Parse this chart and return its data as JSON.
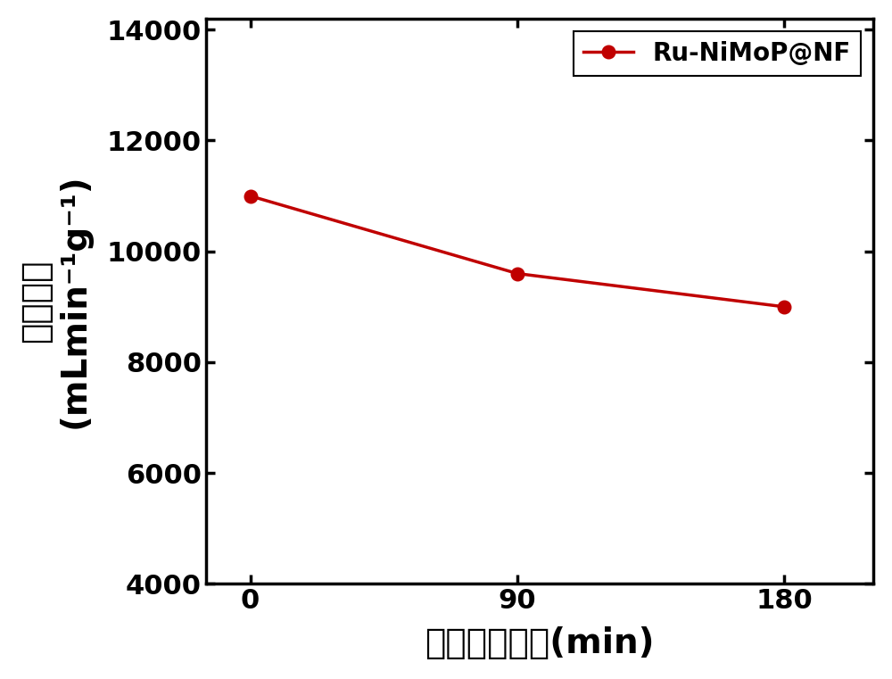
{
  "x": [
    0,
    90,
    180
  ],
  "y": [
    11000,
    9600,
    9000
  ],
  "line_color": "#C00000",
  "marker": "o",
  "marker_size": 10,
  "marker_facecolor": "#C00000",
  "linewidth": 2.5,
  "legend_label": "Ru-NiMoP@NF",
  "xlabel": "连续催化时间(min)",
  "ylabel_line1": "产氢速率",
  "ylabel_line2": "(mLmin⁻¹g⁻¹)",
  "xlim": [
    -15,
    210
  ],
  "ylim": [
    4000,
    14200
  ],
  "xticks": [
    0,
    90,
    180
  ],
  "yticks": [
    4000,
    6000,
    8000,
    10000,
    12000,
    14000
  ],
  "tick_fontsize": 22,
  "label_fontsize": 28,
  "legend_fontsize": 20,
  "background_color": "#ffffff",
  "plot_bg_color": "#ffffff"
}
